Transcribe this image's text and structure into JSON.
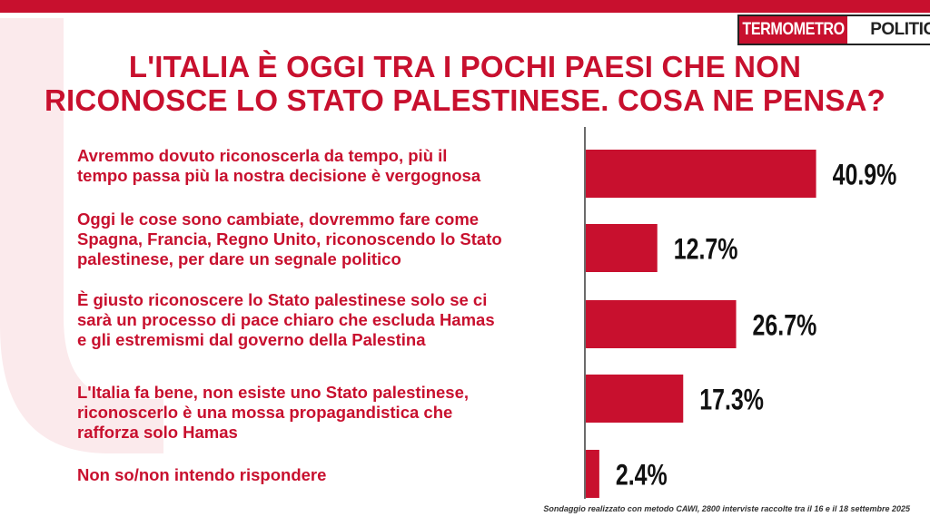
{
  "brand": {
    "part1": "TERMOMETRO",
    "part2": "POLITICO"
  },
  "title": {
    "line1": "L'ITALIA È OGGI TRA I POCHI PAESI CHE NON",
    "line2": "RICONOSCE LO STATO PALESTINESE. COSA NE PENSA?"
  },
  "colors": {
    "accent": "#c8102e",
    "text_dark": "#111111"
  },
  "chart_data": {
    "type": "bar",
    "orientation": "horizontal",
    "categories": [
      "Avremmo dovuto riconoscerla da tempo, più il tempo passa più la nostra decisione è vergognosa",
      "Oggi le cose sono cambiate, dovremmo fare come Spagna, Francia, Regno Unito, riconoscendo lo Stato palestinese, per dare un segnale politico",
      "È giusto riconoscere lo Stato palestinese solo se ci sarà  un processo di pace chiaro che escluda Hamas e gli estremismi dal governo della Palestina",
      "L'Italia fa bene, non esiste uno Stato palestinese, riconoscerlo è una mossa propagandistica che rafforza solo Hamas",
      "Non so/non intendo rispondere"
    ],
    "values": [
      40.9,
      12.7,
      26.7,
      17.3,
      2.4
    ],
    "value_labels": [
      "40.9%",
      "12.7%",
      "26.7%",
      "17.3%",
      "2.4%"
    ],
    "unit": "%"
  },
  "labels": [
    {
      "lines": [
        "Avremmo dovuto riconoscerla da tempo, più il",
        "tempo passa più la nostra decisione è vergognosa"
      ]
    },
    {
      "lines": [
        "Oggi le cose sono cambiate, dovremmo fare come",
        "Spagna, Francia, Regno Unito, riconoscendo lo Stato",
        "palestinese, per dare un segnale politico"
      ]
    },
    {
      "lines": [
        "È giusto riconoscere lo Stato palestinese solo se ci",
        "sarà  un processo di pace chiaro che escluda Hamas",
        "e gli estremismi dal governo della Palestina"
      ]
    },
    {
      "lines": [
        "L'Italia fa bene, non esiste uno Stato palestinese,",
        "riconoscerlo è una mossa propagandistica che",
        "rafforza solo Hamas"
      ]
    },
    {
      "lines": [
        "Non so/non intendo rispondere"
      ]
    }
  ],
  "footnote": "Sondaggio realizzato con metodo CAWI, 2800 interviste raccolte tra il 16 e il 18 settembre 2025"
}
